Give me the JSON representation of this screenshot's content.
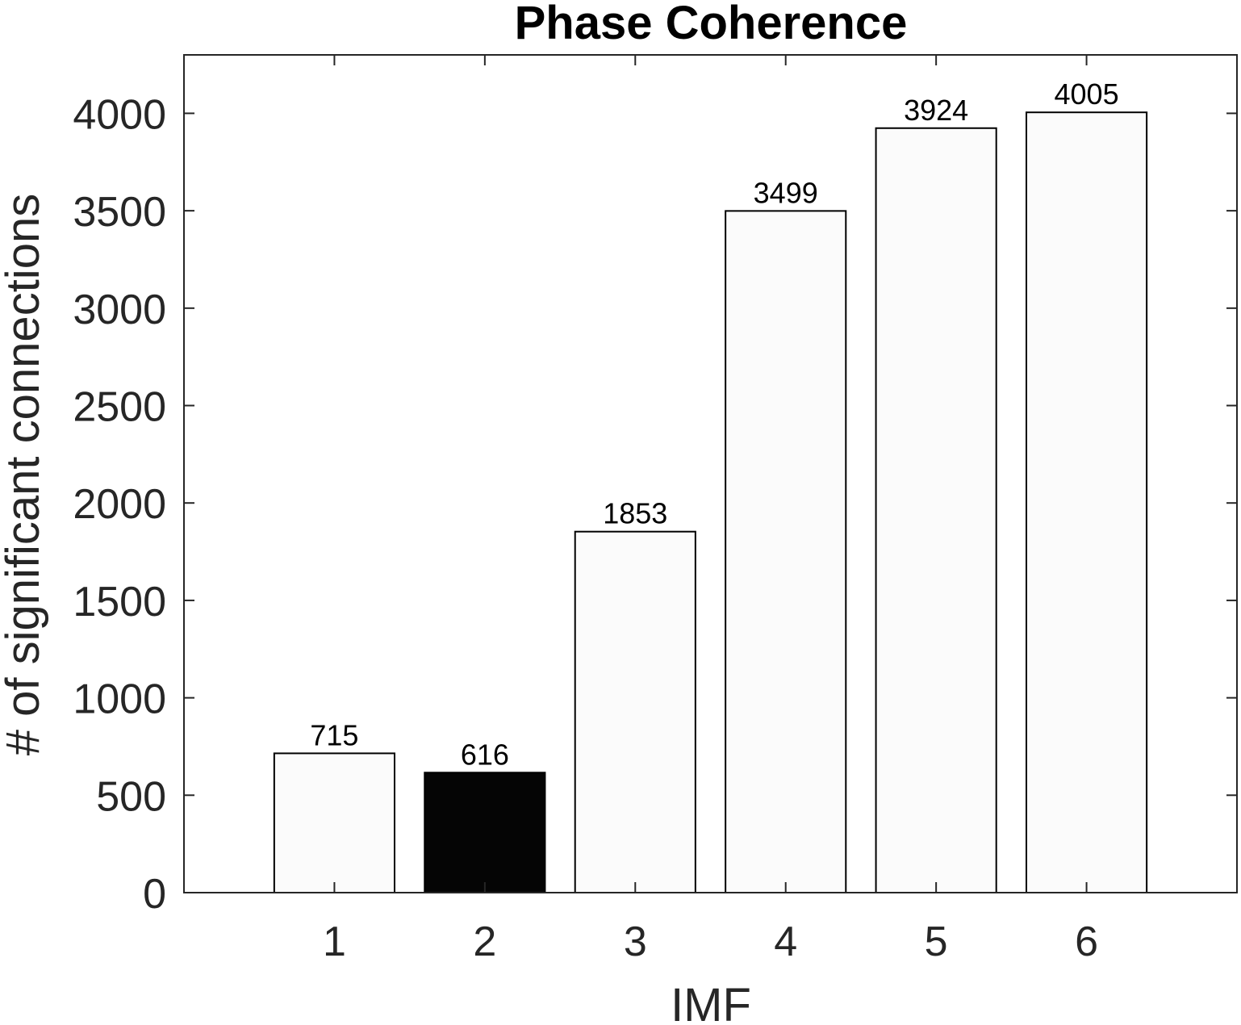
{
  "chart_data": {
    "type": "bar",
    "title": "Phase Coherence",
    "xlabel": "IMF",
    "ylabel": "# of significant connections",
    "categories": [
      "1",
      "2",
      "3",
      "4",
      "5",
      "6"
    ],
    "values": [
      715,
      616,
      1853,
      3499,
      3924,
      4005
    ],
    "data_labels": [
      "715",
      "616",
      "1853",
      "3499",
      "3924",
      "4005"
    ],
    "bar_colors": [
      "#fbfbfb",
      "#050505",
      "#fbfbfb",
      "#fbfbfb",
      "#fbfbfb",
      "#fbfbfb"
    ],
    "xlim": [
      0,
      7
    ],
    "ylim": [
      0,
      4300
    ],
    "yticks": [
      0,
      500,
      1000,
      1500,
      2000,
      2500,
      3000,
      3500,
      4000
    ],
    "ytick_labels": [
      "0",
      "500",
      "1000",
      "1500",
      "2000",
      "2500",
      "3000",
      "3500",
      "4000"
    ],
    "grid": false,
    "legend": "none",
    "box": true
  }
}
